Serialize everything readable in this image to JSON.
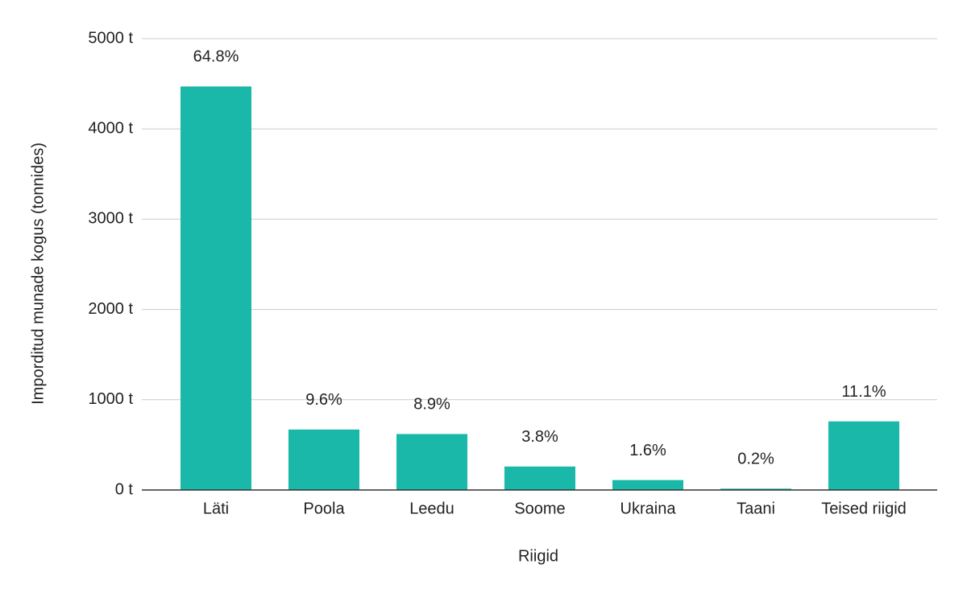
{
  "chart_data": {
    "type": "bar",
    "x_label": "Riigid",
    "y_label": "Imporditud munade kogus (tonnides)",
    "categories": [
      "Läti",
      "Poola",
      "Leedu",
      "Soome",
      "Ukraina",
      "Taani",
      "Teised riigid"
    ],
    "values": [
      4470,
      670,
      620,
      260,
      110,
      15,
      760
    ],
    "shares": [
      {
        "value": 64.8,
        "label": "64.8%"
      },
      {
        "value": 9.6,
        "label": "9.6%"
      },
      {
        "value": 8.9,
        "label": "8.9%"
      },
      {
        "value": 3.8,
        "label": "3.8%"
      },
      {
        "value": 1.6,
        "label": "1.6%"
      },
      {
        "value": 0.2,
        "label": "0.2%"
      },
      {
        "value": 11.1,
        "label": "11.1%"
      }
    ],
    "color": "#1ab8a8",
    "ylim": [
      0,
      5000
    ],
    "yticks": [
      {
        "value": 0,
        "label": "0 t"
      },
      {
        "value": 1000,
        "label": "1000 t"
      },
      {
        "value": 2000,
        "label": "2000 t"
      },
      {
        "value": 3000,
        "label": "3000 t"
      },
      {
        "value": 4000,
        "label": "4000 t"
      },
      {
        "value": 5000,
        "label": "5000 t"
      }
    ],
    "grid": true
  }
}
